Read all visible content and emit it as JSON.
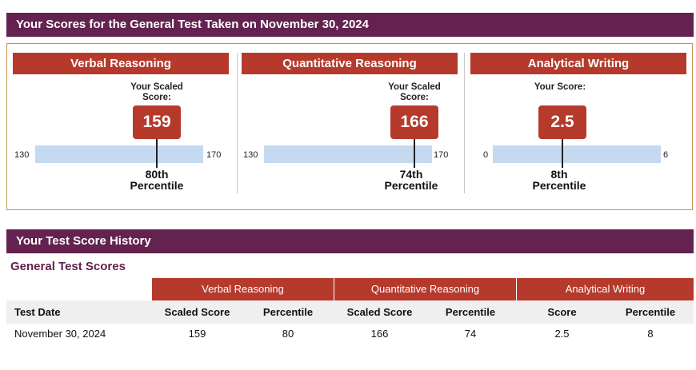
{
  "header": {
    "scores_title": "Your Scores for the General Test Taken on November 30, 2024",
    "history_title": "Your Test Score History"
  },
  "sections": [
    {
      "title": "Verbal Reasoning",
      "caption": "Your Scaled Score:",
      "score": "159",
      "min": "130",
      "max": "170",
      "percentile_num": "80th",
      "percentile_word": "Percentile",
      "level": 0.725
    },
    {
      "title": "Quantitative Reasoning",
      "caption": "Your Scaled Score:",
      "score": "166",
      "min": "130",
      "max": "170",
      "percentile_num": "74th",
      "percentile_word": "Percentile",
      "level": 0.9
    },
    {
      "title": "Analytical Writing",
      "caption": "Your Score:",
      "score": "2.5",
      "min": "0",
      "max": "6",
      "percentile_num": "8th",
      "percentile_word": "Percentile",
      "level": 0.4167
    }
  ],
  "history": {
    "subtitle": "General Test Scores",
    "groups": [
      "Verbal Reasoning",
      "Quantitative Reasoning",
      "Analytical Writing"
    ],
    "columns": [
      "Test Date",
      "Scaled Score",
      "Percentile",
      "Scaled Score",
      "Percentile",
      "Score",
      "Percentile"
    ],
    "rows": [
      [
        "November 30, 2024",
        "159",
        "80",
        "166",
        "74",
        "2.5",
        "8"
      ]
    ]
  },
  "colors": {
    "header_purple": "#63224f",
    "accent_red": "#b53a2c",
    "scale_blue": "#c5daf0",
    "box_border": "#c0944d"
  }
}
